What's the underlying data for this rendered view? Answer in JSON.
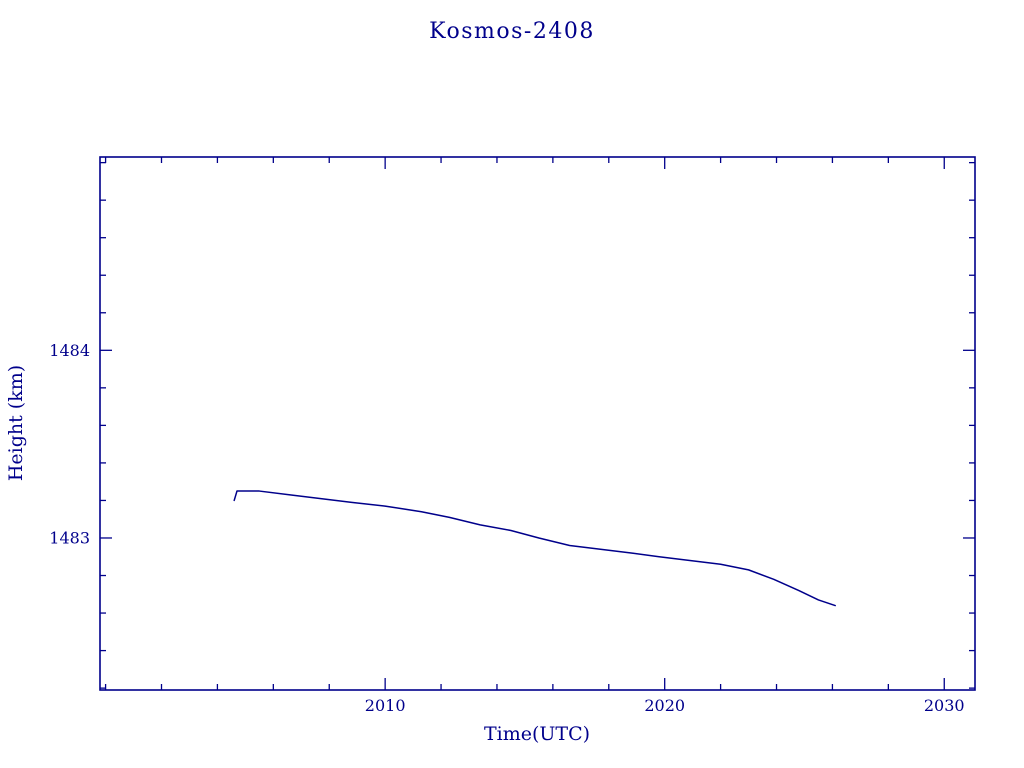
{
  "chart_data": {
    "type": "line",
    "title": "Kosmos-2408",
    "xlabel": "Time(UTC)",
    "ylabel": "Height (km)",
    "xlim": [
      1999.8,
      2031.1
    ],
    "ylim": [
      1482.19,
      1485.03
    ],
    "xticks_major": [
      2010,
      2020,
      2030
    ],
    "xtick_labels": [
      "2010",
      "2020",
      "2030"
    ],
    "xticks_minor_step": 2,
    "yticks_major": [
      1483,
      1484
    ],
    "ytick_labels": [
      "1483",
      "1484"
    ],
    "yticks_minor_step": 0.2,
    "grid": false,
    "legend": "none",
    "color": "#00008B",
    "series": [
      {
        "name": "height",
        "points": [
          [
            2004.6,
            1483.2
          ],
          [
            2004.7,
            1483.25
          ],
          [
            2005.5,
            1483.25
          ],
          [
            2006.6,
            1483.23
          ],
          [
            2007.7,
            1483.21
          ],
          [
            2008.8,
            1483.19
          ],
          [
            2010.0,
            1483.17
          ],
          [
            2011.3,
            1483.14
          ],
          [
            2012.3,
            1483.11
          ],
          [
            2013.4,
            1483.07
          ],
          [
            2014.5,
            1483.04
          ],
          [
            2015.5,
            1483.0
          ],
          [
            2016.6,
            1482.96
          ],
          [
            2017.7,
            1482.94
          ],
          [
            2018.8,
            1482.92
          ],
          [
            2019.8,
            1482.9
          ],
          [
            2020.9,
            1482.88
          ],
          [
            2022.0,
            1482.86
          ],
          [
            2023.0,
            1482.83
          ],
          [
            2023.9,
            1482.78
          ],
          [
            2024.8,
            1482.72
          ],
          [
            2025.5,
            1482.67
          ],
          [
            2026.1,
            1482.64
          ]
        ]
      }
    ]
  }
}
